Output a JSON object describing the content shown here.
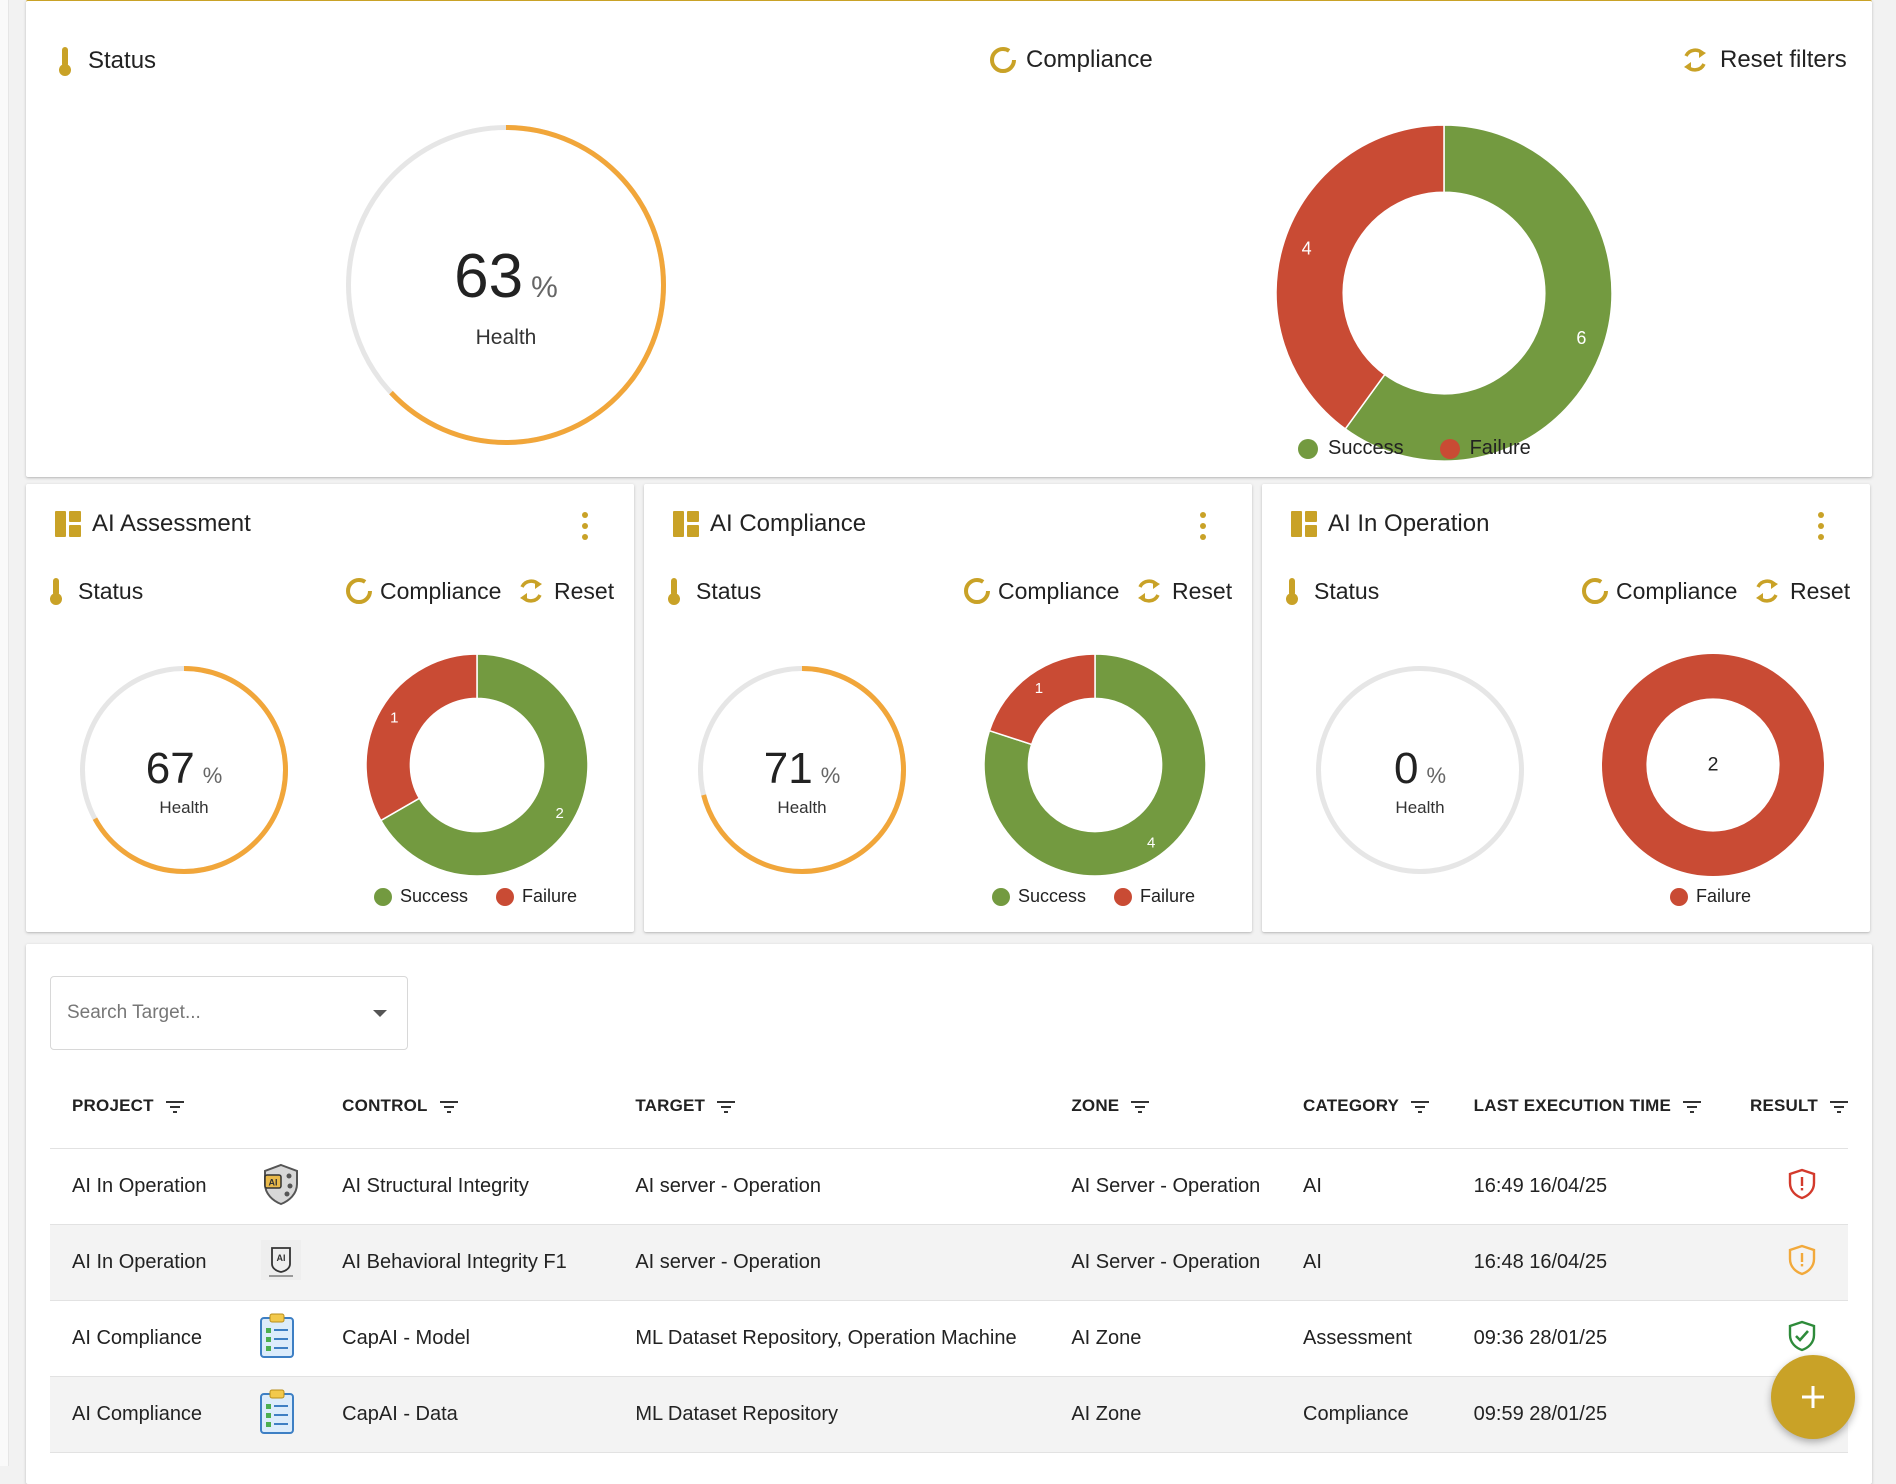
{
  "colors": {
    "accent": "#c9a227",
    "success": "#739a40",
    "failure": "#c94b34",
    "gauge": "#f1a63a",
    "gauge_track": "#e6e6e6"
  },
  "top_panel": {
    "status_label": "Status",
    "compliance_label": "Compliance",
    "reset_label": "Reset filters",
    "health": {
      "value": "63",
      "unit": "%",
      "label": "Health",
      "fraction": 0.63
    },
    "donut": {
      "success": 6,
      "failure": 4
    },
    "legend": {
      "success": "Success",
      "failure": "Failure"
    }
  },
  "projects": [
    {
      "title": "AI Assessment",
      "status_label": "Status",
      "compliance_label": "Compliance",
      "reset_label": "Reset",
      "health": {
        "value": "67",
        "unit": "%",
        "label": "Health",
        "fraction": 0.67
      },
      "donut": {
        "success": 2,
        "failure": 1
      },
      "legend": {
        "success": "Success",
        "failure": "Failure"
      }
    },
    {
      "title": "AI Compliance",
      "status_label": "Status",
      "compliance_label": "Compliance",
      "reset_label": "Reset",
      "health": {
        "value": "71",
        "unit": "%",
        "label": "Health",
        "fraction": 0.71
      },
      "donut": {
        "success": 4,
        "failure": 1
      },
      "legend": {
        "success": "Success",
        "failure": "Failure"
      }
    },
    {
      "title": "AI In Operation",
      "status_label": "Status",
      "compliance_label": "Compliance",
      "reset_label": "Reset",
      "health": {
        "value": "0",
        "unit": "%",
        "label": "Health",
        "fraction": 0
      },
      "donut": {
        "success": 0,
        "failure": 2
      },
      "legend": {
        "failure": "Failure"
      }
    }
  ],
  "search": {
    "placeholder": "Search Target..."
  },
  "table": {
    "columns": [
      "PROJECT",
      "CONTROL",
      "TARGET",
      "ZONE",
      "CATEGORY",
      "LAST EXECUTION TIME",
      "RESULT"
    ],
    "rows": [
      {
        "project": "AI In Operation",
        "icon": "ai-shield-icon",
        "control": "AI Structural Integrity",
        "target": "AI server - Operation",
        "zone": "AI Server - Operation",
        "category": "AI",
        "time": "16:49 16/04/25",
        "result": "failure"
      },
      {
        "project": "AI In Operation",
        "icon": "ai-brain-icon",
        "control": "AI Behavioral Integrity F1",
        "target": "AI server - Operation",
        "zone": "AI Server - Operation",
        "category": "AI",
        "time": "16:48 16/04/25",
        "result": "warning"
      },
      {
        "project": "AI Compliance",
        "icon": "checklist-icon",
        "control": "CapAI - Model",
        "target": "ML Dataset Repository, Operation Machine",
        "zone": "AI Zone",
        "category": "Assessment",
        "time": "09:36 28/01/25",
        "result": "success"
      },
      {
        "project": "AI Compliance",
        "icon": "checklist-icon",
        "control": "CapAI - Data",
        "target": "ML Dataset Repository",
        "zone": "AI Zone",
        "category": "Compliance",
        "time": "09:59 28/01/25",
        "result": "none"
      }
    ]
  }
}
